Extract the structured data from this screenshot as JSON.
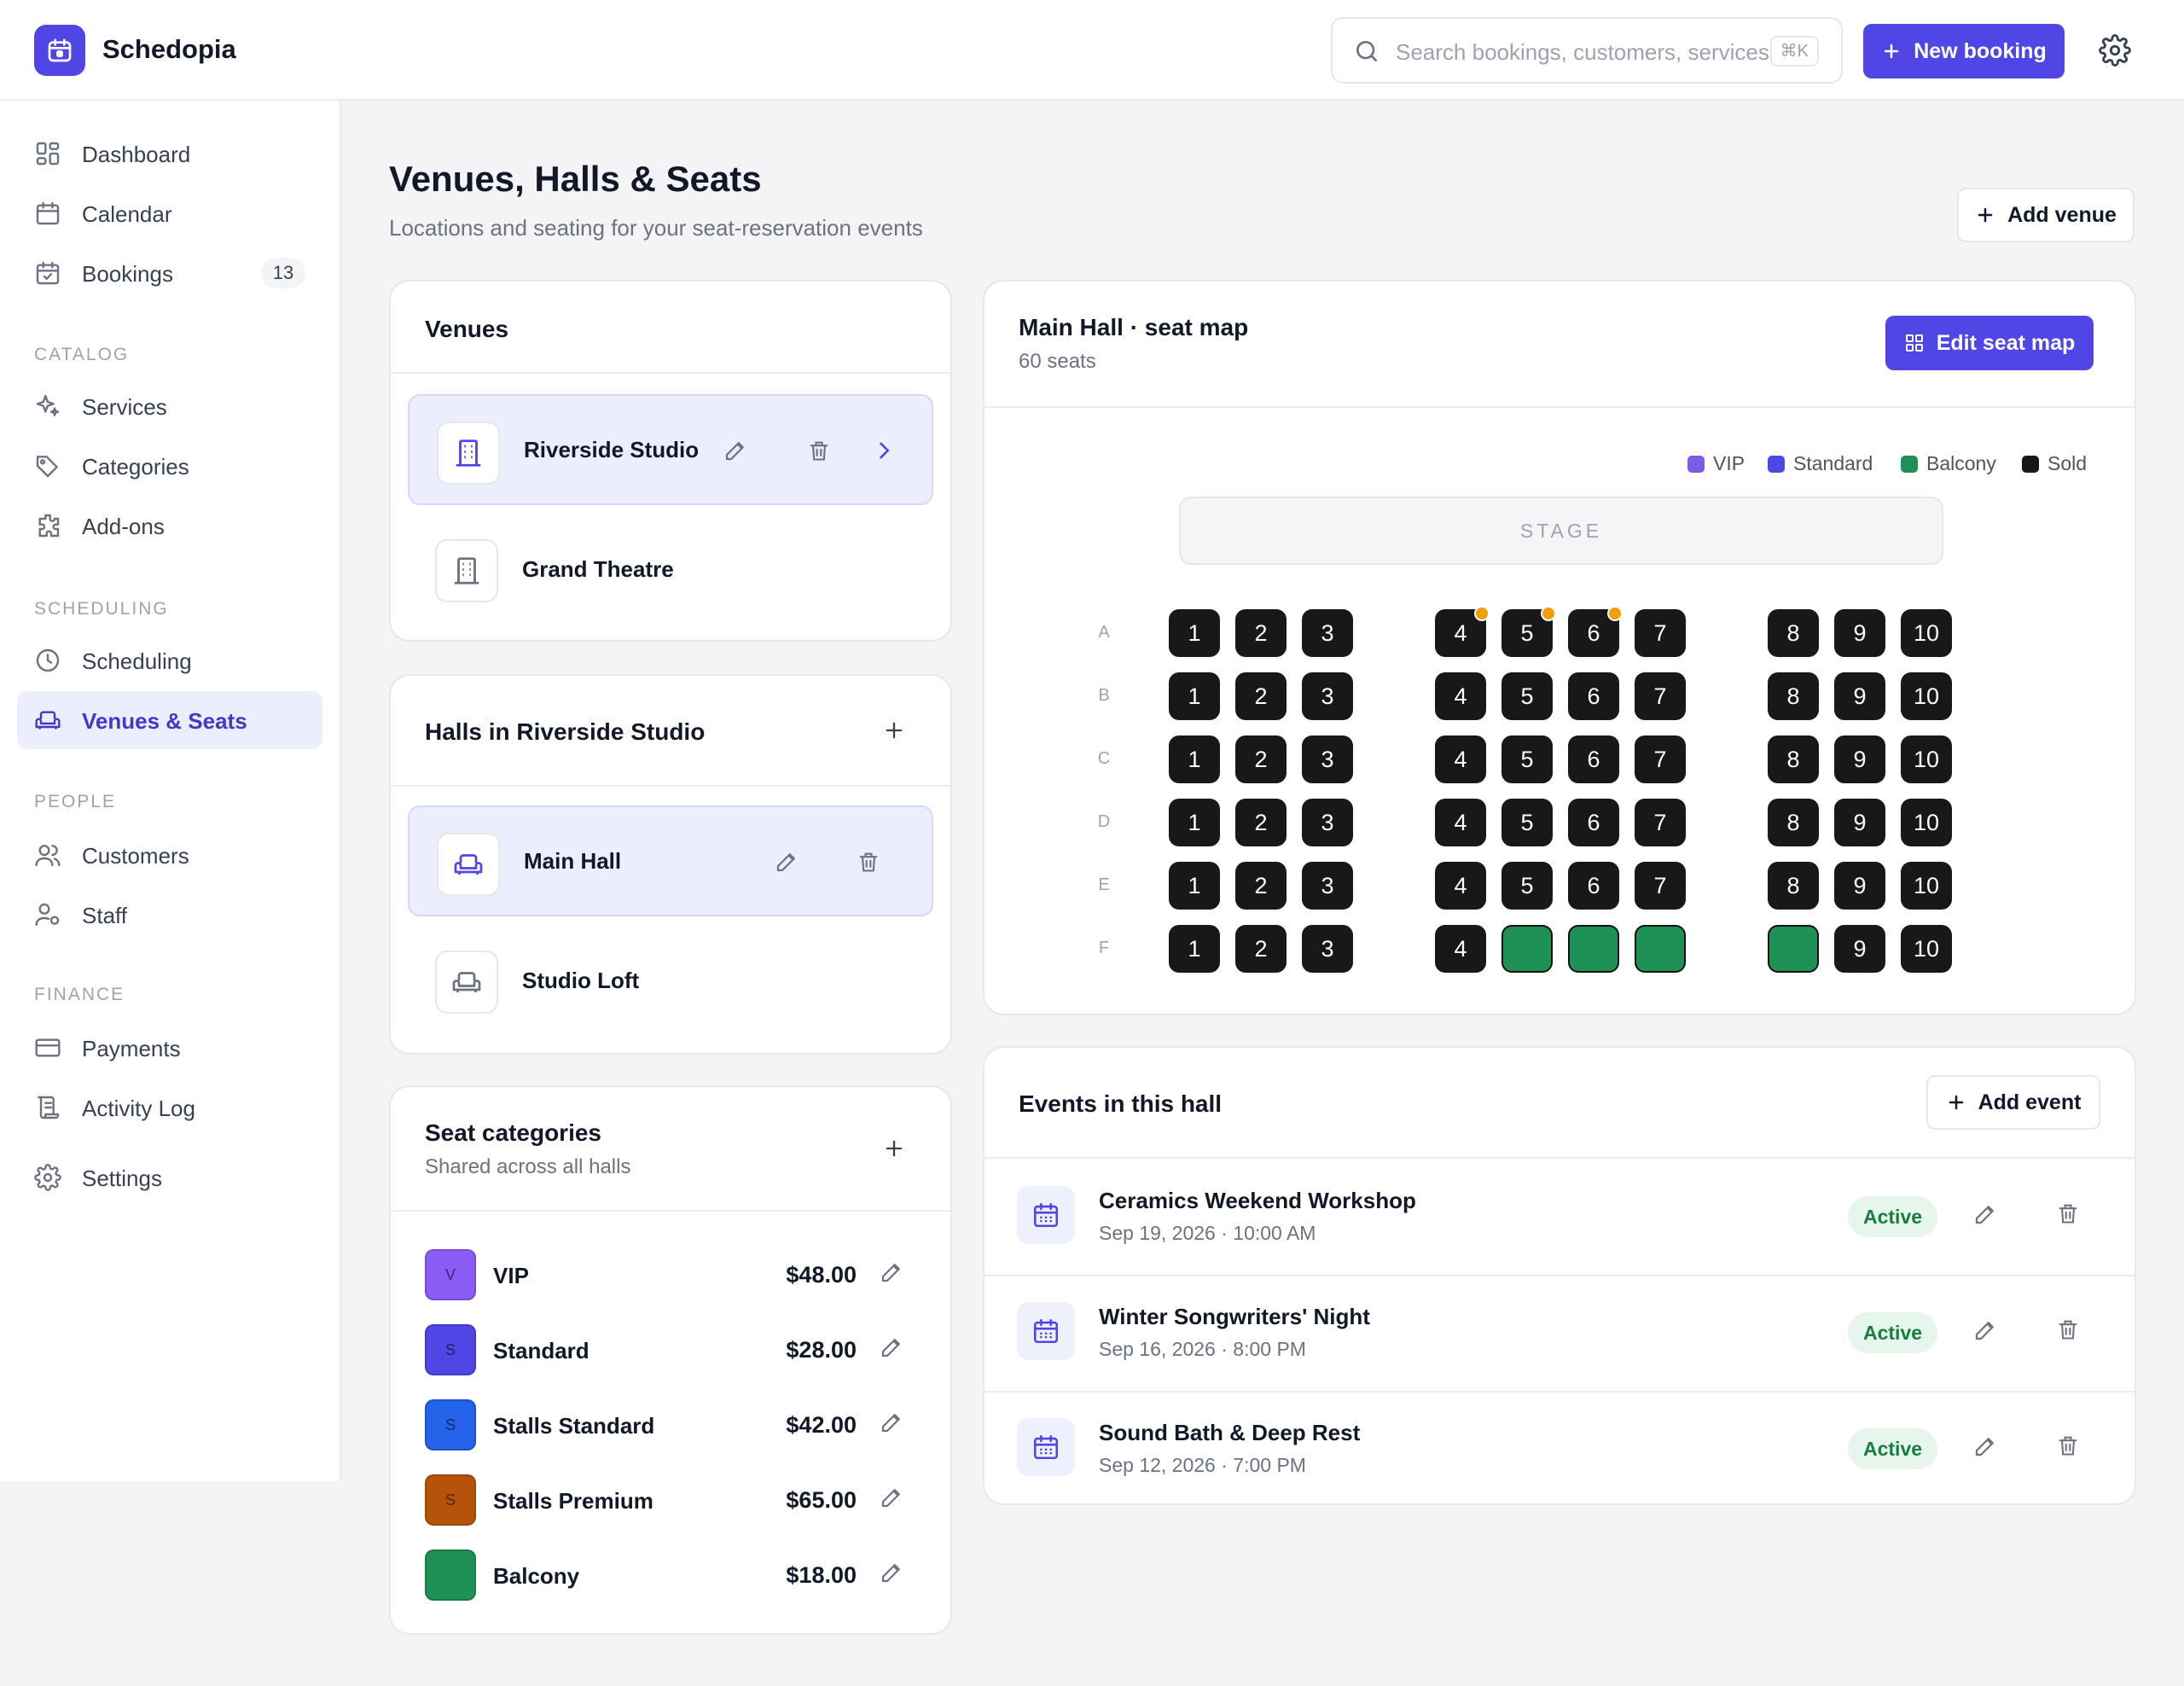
{
  "app": {
    "name": "Schedopia"
  },
  "header": {
    "search_placeholder": "Search bookings, customers, services",
    "search_shortcut": "⌘K",
    "new_booking_label": "New booking"
  },
  "sidebar": {
    "items": [
      {
        "label": "Dashboard",
        "icon": "grid-icon"
      },
      {
        "label": "Calendar",
        "icon": "calendar-icon"
      },
      {
        "label": "Bookings",
        "icon": "calendar-check-icon",
        "badge": "13"
      }
    ],
    "sections": [
      {
        "title": "CATALOG",
        "items": [
          {
            "label": "Services",
            "icon": "sparkles-icon"
          },
          {
            "label": "Categories",
            "icon": "tag-icon"
          },
          {
            "label": "Add-ons",
            "icon": "puzzle-icon"
          }
        ]
      },
      {
        "title": "SCHEDULING",
        "items": [
          {
            "label": "Scheduling",
            "icon": "clock-icon"
          },
          {
            "label": "Venues & Seats",
            "icon": "armchair-icon",
            "active": true
          }
        ]
      },
      {
        "title": "PEOPLE",
        "items": [
          {
            "label": "Customers",
            "icon": "users-icon"
          },
          {
            "label": "Staff",
            "icon": "user-cog-icon"
          }
        ]
      },
      {
        "title": "FINANCE",
        "items": [
          {
            "label": "Payments",
            "icon": "credit-card-icon"
          },
          {
            "label": "Activity Log",
            "icon": "scroll-icon"
          }
        ]
      }
    ],
    "settings_label": "Settings"
  },
  "page": {
    "title": "Venues, Halls & Seats",
    "subtitle": "Locations and seating for your seat-reservation events",
    "add_venue_label": "Add venue"
  },
  "venues": {
    "title": "Venues",
    "items": [
      {
        "name": "Riverside Studio",
        "selected": true
      },
      {
        "name": "Grand Theatre",
        "selected": false
      }
    ]
  },
  "halls": {
    "title": "Halls in Riverside Studio",
    "items": [
      {
        "name": "Main Hall",
        "selected": true
      },
      {
        "name": "Studio Loft",
        "selected": false
      }
    ]
  },
  "seat_categories": {
    "title": "Seat categories",
    "subtitle": "Shared across all halls",
    "items": [
      {
        "initial": "V",
        "name": "VIP",
        "price": "$48.00",
        "color": "#8b5cf6"
      },
      {
        "initial": "S",
        "name": "Standard",
        "price": "$28.00",
        "color": "#4f46e5"
      },
      {
        "initial": "S",
        "name": "Stalls Standard",
        "price": "$42.00",
        "color": "#2563eb"
      },
      {
        "initial": "S",
        "name": "Stalls Premium",
        "price": "$65.00",
        "color": "#b45309"
      },
      {
        "initial": "",
        "name": "Balcony",
        "price": "$18.00",
        "color": "#1f9154"
      }
    ]
  },
  "seat_map": {
    "title": "Main Hall · seat map",
    "subtitle": "60 seats",
    "edit_label": "Edit seat map",
    "legend": [
      {
        "label": "VIP",
        "color": "#7c5ce0"
      },
      {
        "label": "Standard",
        "color": "#4f46e5"
      },
      {
        "label": "Balcony",
        "color": "#1f9154"
      },
      {
        "label": "Sold",
        "color": "#18181b"
      }
    ],
    "stage_label": "STAGE",
    "rows": [
      "A",
      "B",
      "C",
      "D",
      "E",
      "F"
    ],
    "seat_numbers": [
      "1",
      "2",
      "3",
      "4",
      "5",
      "6",
      "7",
      "8",
      "9",
      "10"
    ],
    "balcony_seats": {
      "F": [
        "5",
        "6",
        "7",
        "8"
      ]
    },
    "flagged_seats": {
      "A": [
        "4",
        "5",
        "6"
      ]
    }
  },
  "events": {
    "title": "Events in this hall",
    "add_label": "Add event",
    "items": [
      {
        "name": "Ceramics Weekend Workshop",
        "date": "Sep 19, 2026 · 10:00 AM",
        "status": "Active"
      },
      {
        "name": "Winter Songwriters' Night",
        "date": "Sep 16, 2026 · 8:00 PM",
        "status": "Active"
      },
      {
        "name": "Sound Bath & Deep Rest",
        "date": "Sep 12, 2026 · 7:00 PM",
        "status": "Active"
      }
    ]
  }
}
